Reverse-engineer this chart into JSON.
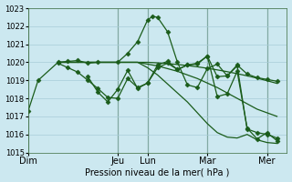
{
  "xlabel": "Pression niveau de la mer( hPa )",
  "bg_color": "#cce8f0",
  "grid_color": "#a8ccd8",
  "line_color": "#1a5c1a",
  "ylim": [
    1015,
    1023
  ],
  "yticks": [
    1015,
    1016,
    1017,
    1018,
    1019,
    1020,
    1021,
    1022,
    1023
  ],
  "day_labels": [
    "Dim",
    "Jeu",
    "Lun",
    "Mar",
    "Mer"
  ],
  "day_positions": [
    0,
    9,
    12,
    18,
    24
  ],
  "xlim": [
    0,
    26
  ],
  "lines": [
    {
      "x": [
        0,
        1,
        3,
        4,
        5,
        6,
        7,
        9,
        10,
        11,
        12,
        12.5,
        13,
        14,
        15,
        16,
        17,
        18,
        19,
        20,
        21,
        22,
        23,
        24,
        25
      ],
      "y": [
        1017.3,
        1019.0,
        1020.0,
        1020.05,
        1020.1,
        1019.95,
        1020.0,
        1020.0,
        1020.5,
        1021.15,
        1022.35,
        1022.55,
        1022.5,
        1021.7,
        1020.0,
        1018.75,
        1018.6,
        1019.65,
        1019.9,
        1019.25,
        1019.85,
        1019.35,
        1019.15,
        1019.05,
        1018.95
      ],
      "marker": "D",
      "markersize": 2.5
    },
    {
      "x": [
        3,
        4,
        5,
        6,
        7,
        8,
        9,
        10,
        11,
        12,
        13,
        14,
        15,
        16,
        17,
        18,
        19,
        20,
        21,
        22,
        23,
        24,
        25
      ],
      "y": [
        1020.0,
        1020.0,
        1020.0,
        1020.0,
        1020.0,
        1020.0,
        1020.0,
        1020.0,
        1020.0,
        1020.0,
        1019.97,
        1019.93,
        1019.88,
        1019.82,
        1019.75,
        1019.67,
        1019.58,
        1019.48,
        1019.37,
        1019.25,
        1019.12,
        1018.98,
        1018.83
      ],
      "marker": null,
      "markersize": 0
    },
    {
      "x": [
        3,
        5,
        7,
        9,
        11,
        13,
        15,
        17,
        19,
        21,
        23,
        25
      ],
      "y": [
        1020.0,
        1020.0,
        1020.0,
        1020.0,
        1020.0,
        1019.8,
        1019.5,
        1019.1,
        1018.6,
        1018.0,
        1017.4,
        1017.0
      ],
      "marker": null,
      "markersize": 0
    },
    {
      "x": [
        3,
        5,
        7,
        9,
        11,
        12,
        13,
        14,
        15,
        16,
        17,
        18,
        19,
        20,
        21,
        22,
        23,
        24,
        25
      ],
      "y": [
        1020.0,
        1020.0,
        1020.0,
        1020.0,
        1020.0,
        1019.7,
        1019.3,
        1018.8,
        1018.3,
        1017.8,
        1017.2,
        1016.6,
        1016.1,
        1015.85,
        1015.8,
        1016.0,
        1015.7,
        1015.55,
        1015.5
      ],
      "marker": null,
      "markersize": 0
    },
    {
      "x": [
        3,
        4,
        5,
        6,
        7,
        8,
        9,
        10,
        11,
        12,
        13,
        14,
        15,
        16,
        17,
        18,
        19,
        20,
        21,
        22,
        23,
        24,
        25
      ],
      "y": [
        1019.95,
        1019.7,
        1019.45,
        1019.0,
        1018.55,
        1018.05,
        1018.0,
        1019.1,
        1018.6,
        1018.85,
        1019.7,
        1019.95,
        1019.6,
        1019.85,
        1019.9,
        1020.35,
        1019.2,
        1019.25,
        1019.8,
        1016.3,
        1016.1,
        1016.0,
        1015.8
      ],
      "marker": "D",
      "markersize": 2.5
    },
    {
      "x": [
        6,
        7,
        8,
        9,
        10,
        11,
        12,
        13,
        14,
        15,
        16,
        17,
        18,
        19,
        20,
        21,
        22,
        23,
        24,
        25
      ],
      "y": [
        1019.2,
        1018.35,
        1017.8,
        1018.5,
        1019.55,
        1018.55,
        1018.85,
        1019.85,
        1020.05,
        1019.6,
        1019.85,
        1019.95,
        1020.35,
        1018.1,
        1018.25,
        1019.5,
        1016.35,
        1015.75,
        1016.1,
        1015.65
      ],
      "marker": "D",
      "markersize": 2.5
    }
  ]
}
